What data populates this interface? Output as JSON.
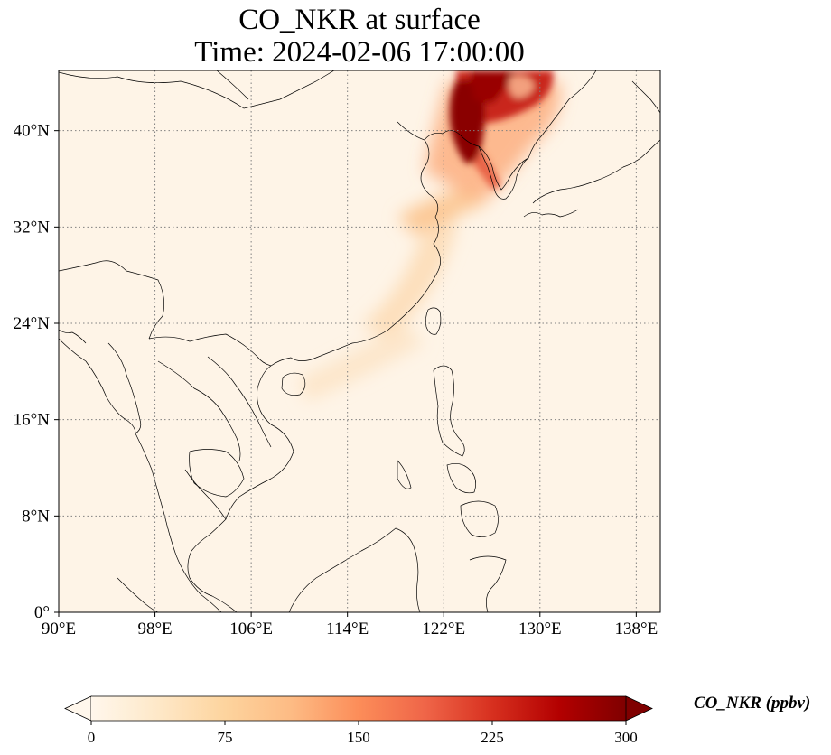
{
  "title": {
    "line1": "CO_NKR at surface",
    "line2": "Time: 2024-02-06 17:00:00"
  },
  "map": {
    "projection": "PlateCarree",
    "lon_range": [
      90,
      140
    ],
    "lat_range": [
      0,
      45
    ],
    "lon_ticks": [
      {
        "value": 90,
        "label": "90°E"
      },
      {
        "value": 98,
        "label": "98°E"
      },
      {
        "value": 106,
        "label": "106°E"
      },
      {
        "value": 114,
        "label": "114°E"
      },
      {
        "value": 122,
        "label": "122°E"
      },
      {
        "value": 130,
        "label": "130°E"
      },
      {
        "value": 138,
        "label": "138°E"
      }
    ],
    "lat_ticks": [
      {
        "value": 0,
        "label": "0°"
      },
      {
        "value": 8,
        "label": "8°N"
      },
      {
        "value": 16,
        "label": "16°N"
      },
      {
        "value": 24,
        "label": "24°N"
      },
      {
        "value": 32,
        "label": "32°N"
      },
      {
        "value": 40,
        "label": "40°N"
      }
    ],
    "gridlines": "dotted",
    "field_colormap": "OrRd",
    "plume_features": [
      {
        "name": "north-korea-manchuria-core",
        "lon": 125.0,
        "lat": 41.0,
        "level": 300
      },
      {
        "name": "manchuria-plume",
        "lon": 126.5,
        "lat": 43.5,
        "level": 290
      },
      {
        "name": "korean-peninsula-trail",
        "lon": 126.0,
        "lat": 37.0,
        "level": 190
      },
      {
        "name": "yellow-sea-tail",
        "lon": 124.5,
        "lat": 35.0,
        "level": 110
      },
      {
        "name": "east-china-coast-band",
        "lon": 119.0,
        "lat": 28.0,
        "level": 45
      },
      {
        "name": "south-china-sea-band",
        "lon": 114.0,
        "lat": 20.0,
        "level": 30
      }
    ]
  },
  "colorbar": {
    "label": "CO_NKR (ppbv)",
    "min": 0,
    "max": 300,
    "extend": "both",
    "ticks": [
      {
        "value": 0,
        "label": "0"
      },
      {
        "value": 75,
        "label": "75"
      },
      {
        "value": 150,
        "label": "150"
      },
      {
        "value": 225,
        "label": "225"
      },
      {
        "value": 300,
        "label": "300"
      }
    ],
    "colors": [
      "#fff7ec",
      "#fee8c8",
      "#fdd49e",
      "#fdbb84",
      "#fc8d59",
      "#ef6548",
      "#d7301f",
      "#b30000",
      "#7f0000"
    ]
  }
}
